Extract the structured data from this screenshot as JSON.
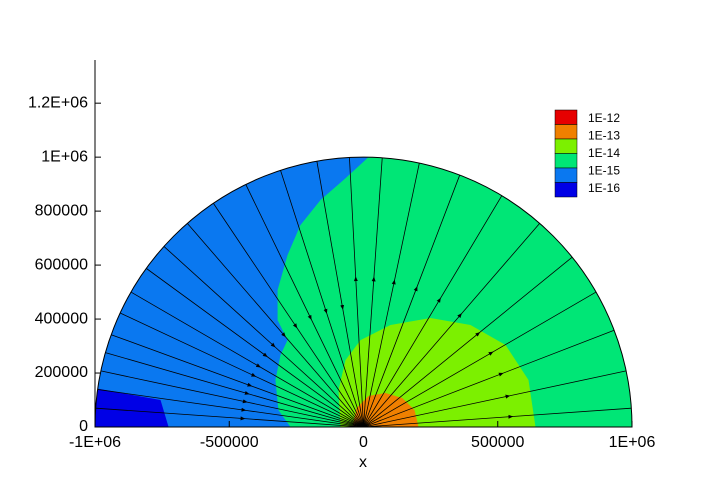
{
  "chart_data": {
    "type": "contour",
    "xlabel": "x",
    "xlim": [
      -1000000,
      1000000
    ],
    "ylim": [
      0,
      1360000
    ],
    "xticks": [
      {
        "value": -1000000,
        "label": "-1E+06"
      },
      -500000,
      0,
      500000,
      {
        "value": 1000000,
        "label": "1E+06"
      }
    ],
    "yticks": [
      0,
      200000,
      400000,
      600000,
      800000,
      {
        "value": 1000000,
        "label": "1E+06"
      },
      {
        "value": 1200000,
        "label": "1.2E+06"
      }
    ],
    "domain_radius": 1000000,
    "domain_color": "#00e676",
    "regions": [
      {
        "color": "#0a78f0",
        "x": [
          -1100000,
          -1100000,
          18600,
          18600,
          -67000,
          -160000,
          -235000,
          -283000,
          -320000,
          -320000,
          -283000,
          -309000,
          -328000,
          -317000,
          -272000
        ],
        "y": [
          0,
          1100000,
          1100000,
          1000000,
          922000,
          841000,
          748000,
          637000,
          507000,
          396000,
          322000,
          267000,
          174000,
          63000,
          0
        ]
      },
      {
        "color": "#0000e6",
        "x": [
          -1100000,
          -1100000,
          -1000000,
          -756000,
          -726000
        ],
        "y": [
          0,
          150000,
          144000,
          100000,
          0
        ]
      },
      {
        "color": "#7cf000",
        "x": [
          -85700,
          -93000,
          -67000,
          -11000,
          100600,
          249500,
          398500,
          529000,
          614500,
          640600
        ],
        "y": [
          0,
          137000,
          248000,
          322000,
          378000,
          404000,
          378000,
          304000,
          174000,
          0
        ]
      },
      {
        "color": "#f08000",
        "x": [
          -41000,
          -26000,
          18600,
          82000,
          145000,
          190000,
          205000
        ],
        "y": [
          0,
          70000,
          115000,
          126000,
          107000,
          63000,
          0
        ]
      }
    ],
    "legend": {
      "labels": [
        "1E-12",
        "1E-13",
        "1E-14",
        "1E-15",
        "1E-16"
      ],
      "colors": [
        "#e60000",
        "#f08000",
        "#7cf000",
        "#00e676",
        "#0a78f0",
        "#0000e6"
      ]
    }
  }
}
